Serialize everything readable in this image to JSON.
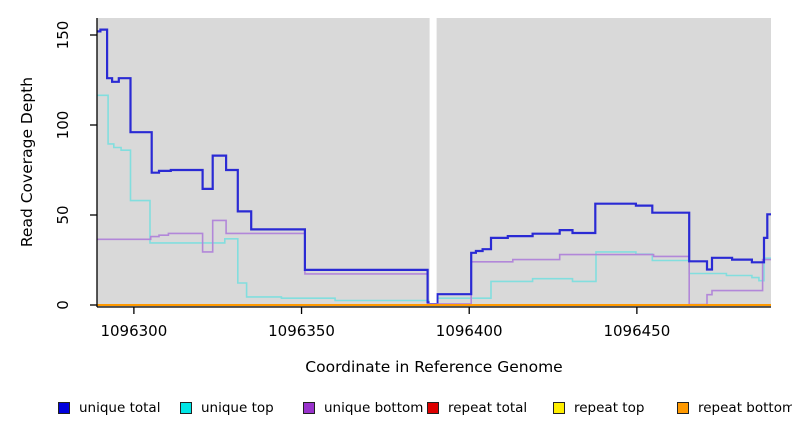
{
  "chart_data": {
    "type": "line",
    "step": true,
    "title": "",
    "xlabel": "Coordinate in Reference Genome",
    "ylabel": "Read Coverage Depth",
    "xlim": [
      1096289,
      1096490
    ],
    "ylim": [
      0,
      158
    ],
    "x_ticks": [
      1096300,
      1096350,
      1096400,
      1096450
    ],
    "y_ticks": [
      0,
      50,
      100,
      150
    ],
    "grid": "off",
    "plot_background": "#d9d9d9",
    "axis_color": "#000000",
    "legend_position": "bottom",
    "gap_region": {
      "x_start": 1096388.2,
      "x_end": 1096390.3,
      "color": "#ffffff",
      "note": "white band = no data"
    },
    "draw_order": [
      "repeat total",
      "repeat top",
      "unique top",
      "unique bottom",
      "unique total",
      "repeat bottom"
    ],
    "x_end": 1096490,
    "series": [
      {
        "name": "unique total",
        "line_color": "#2a2ad4",
        "swatch_color": "#0000dd",
        "width": 2.2,
        "points": [
          [
            1096289,
            152
          ],
          [
            1096290,
            153
          ],
          [
            1096292,
            126
          ],
          [
            1096293.5,
            124
          ],
          [
            1096295.5,
            126
          ],
          [
            1096299,
            96
          ],
          [
            1096305.3,
            73.5
          ],
          [
            1096307.5,
            74.5
          ],
          [
            1096311,
            75
          ],
          [
            1096320.5,
            64.5
          ],
          [
            1096323.5,
            83
          ],
          [
            1096327.5,
            75
          ],
          [
            1096331,
            52
          ],
          [
            1096335,
            42
          ],
          [
            1096351,
            19.5
          ],
          [
            1096387.6,
            1.5
          ],
          [
            1096390.5,
            6
          ],
          [
            1096400.6,
            29
          ],
          [
            1096402,
            30
          ],
          [
            1096404,
            31
          ],
          [
            1096406.5,
            37.3
          ],
          [
            1096411.5,
            38.3
          ],
          [
            1096418.9,
            39.6
          ],
          [
            1096427,
            41.6
          ],
          [
            1096430.8,
            40
          ],
          [
            1096437.6,
            56.3
          ],
          [
            1096449.7,
            55.2
          ],
          [
            1096454.6,
            51.3
          ],
          [
            1096465.6,
            24.3
          ],
          [
            1096470.9,
            19.7
          ],
          [
            1096472.4,
            26.2
          ],
          [
            1096478.4,
            25.2
          ],
          [
            1096484.3,
            23.7
          ],
          [
            1096487.9,
            37.3
          ],
          [
            1096488.9,
            50.4
          ]
        ]
      },
      {
        "name": "unique top",
        "line_color": "#82dede",
        "swatch_color": "#00e5e5",
        "width": 1.6,
        "points": [
          [
            1096289,
            116.5
          ],
          [
            1096292.3,
            89.5
          ],
          [
            1096294,
            87.5
          ],
          [
            1096296.2,
            86
          ],
          [
            1096299,
            58
          ],
          [
            1096304.8,
            34.5
          ],
          [
            1096327.1,
            36.8
          ],
          [
            1096331,
            12.2
          ],
          [
            1096333.6,
            4.5
          ],
          [
            1096344,
            3.8
          ],
          [
            1096360,
            2.5
          ],
          [
            1096390.5,
            3.8
          ],
          [
            1096406.5,
            13.1
          ],
          [
            1096418.9,
            14.6
          ],
          [
            1096430.8,
            13.1
          ],
          [
            1096437.8,
            29.5
          ],
          [
            1096449.7,
            28.2
          ],
          [
            1096454.6,
            24.7
          ],
          [
            1096465.6,
            17.5
          ],
          [
            1096476.7,
            16.4
          ],
          [
            1096484.3,
            15.2
          ],
          [
            1096486.4,
            13.5
          ],
          [
            1096487.9,
            26
          ]
        ]
      },
      {
        "name": "unique bottom",
        "line_color": "#b287d9",
        "swatch_color": "#9933cc",
        "width": 1.6,
        "points": [
          [
            1096289,
            36.5
          ],
          [
            1096305,
            38
          ],
          [
            1096307.5,
            38.8
          ],
          [
            1096310.3,
            39.8
          ],
          [
            1096320.5,
            29.5
          ],
          [
            1096323.5,
            47
          ],
          [
            1096327.5,
            39.8
          ],
          [
            1096351,
            17.3
          ],
          [
            1096387.6,
            0.6
          ],
          [
            1096400.6,
            24
          ],
          [
            1096413,
            25.2
          ],
          [
            1096427,
            28
          ],
          [
            1096455,
            27
          ],
          [
            1096465.6,
            0.3
          ],
          [
            1096470.9,
            5.7
          ],
          [
            1096472.4,
            8
          ],
          [
            1096487.5,
            25.2
          ]
        ]
      },
      {
        "name": "repeat total",
        "line_color": "#dd0000",
        "swatch_color": "#dd0000",
        "width": 1.5,
        "points": [
          [
            1096289,
            0
          ]
        ]
      },
      {
        "name": "repeat top",
        "line_color": "#ffee00",
        "swatch_color": "#ffee00",
        "width": 1.5,
        "points": [
          [
            1096289,
            0
          ]
        ]
      },
      {
        "name": "repeat bottom",
        "line_color": "#ff9900",
        "swatch_color": "#ff9900",
        "width": 2,
        "points": [
          [
            1096289,
            0
          ]
        ]
      }
    ]
  }
}
